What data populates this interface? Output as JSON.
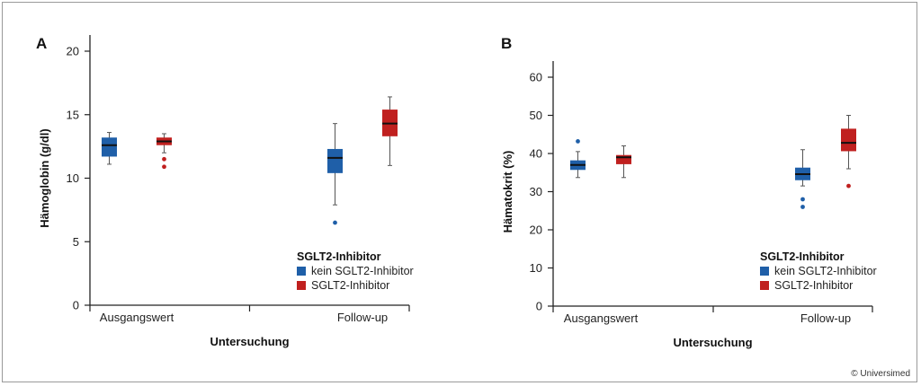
{
  "copyright": "© Universimed",
  "colors": {
    "kein": "#1f5fa8",
    "sglt2": "#c0201f",
    "axis": "#222222",
    "whisker": "#555555"
  },
  "chart_data": [
    {
      "panel": "A",
      "type": "box",
      "xlabel": "Untersuchung",
      "ylabel": "Hämoglobin (g/dl)",
      "ylim": [
        0,
        20
      ],
      "yticks": [
        0,
        5,
        10,
        15,
        20
      ],
      "categories": [
        "Ausgangswert",
        "Follow-up"
      ],
      "legend": {
        "title": "SGLT2-Inhibitor",
        "placement": "bottom-right"
      },
      "series": [
        {
          "name": "kein SGLT2-Inhibitor",
          "color": "#1f5fa8",
          "boxes": [
            {
              "whislo": 11.1,
              "q1": 11.7,
              "med": 12.6,
              "q3": 13.2,
              "whishi": 13.6,
              "fliers": []
            },
            {
              "whislo": 7.9,
              "q1": 10.4,
              "med": 11.6,
              "q3": 12.3,
              "whishi": 14.3,
              "fliers": [
                6.5
              ]
            }
          ]
        },
        {
          "name": "SGLT2-Inhibitor",
          "color": "#c0201f",
          "boxes": [
            {
              "whislo": 12.0,
              "q1": 12.6,
              "med": 12.9,
              "q3": 13.2,
              "whishi": 13.5,
              "fliers": [
                11.5,
                10.9
              ]
            },
            {
              "whislo": 11.0,
              "q1": 13.3,
              "med": 14.3,
              "q3": 15.4,
              "whishi": 16.4,
              "fliers": []
            }
          ]
        }
      ]
    },
    {
      "panel": "B",
      "type": "box",
      "xlabel": "Untersuchung",
      "ylabel": "Hämatokrit (%)",
      "ylim": [
        0,
        60
      ],
      "yticks": [
        0,
        10,
        20,
        30,
        40,
        50,
        60
      ],
      "categories": [
        "Ausgangswert",
        "Follow-up"
      ],
      "legend": {
        "title": "SGLT2-Inhibitor",
        "placement": "bottom-right"
      },
      "series": [
        {
          "name": "kein SGLT2-Inhibitor",
          "color": "#1f5fa8",
          "boxes": [
            {
              "whislo": 33.7,
              "q1": 35.7,
              "med": 37.0,
              "q3": 38.2,
              "whishi": 40.5,
              "fliers": [
                43.2
              ]
            },
            {
              "whislo": 31.5,
              "q1": 33.0,
              "med": 34.6,
              "q3": 36.3,
              "whishi": 41.0,
              "fliers": [
                28.0,
                26.0
              ]
            }
          ]
        },
        {
          "name": "SGLT2-Inhibitor",
          "color": "#c0201f",
          "boxes": [
            {
              "whislo": 33.7,
              "q1": 37.2,
              "med": 39.0,
              "q3": 39.6,
              "whishi": 42.0,
              "fliers": []
            },
            {
              "whislo": 36.0,
              "q1": 40.6,
              "med": 42.8,
              "q3": 46.5,
              "whishi": 50.0,
              "fliers": [
                31.5
              ]
            }
          ]
        }
      ]
    }
  ]
}
